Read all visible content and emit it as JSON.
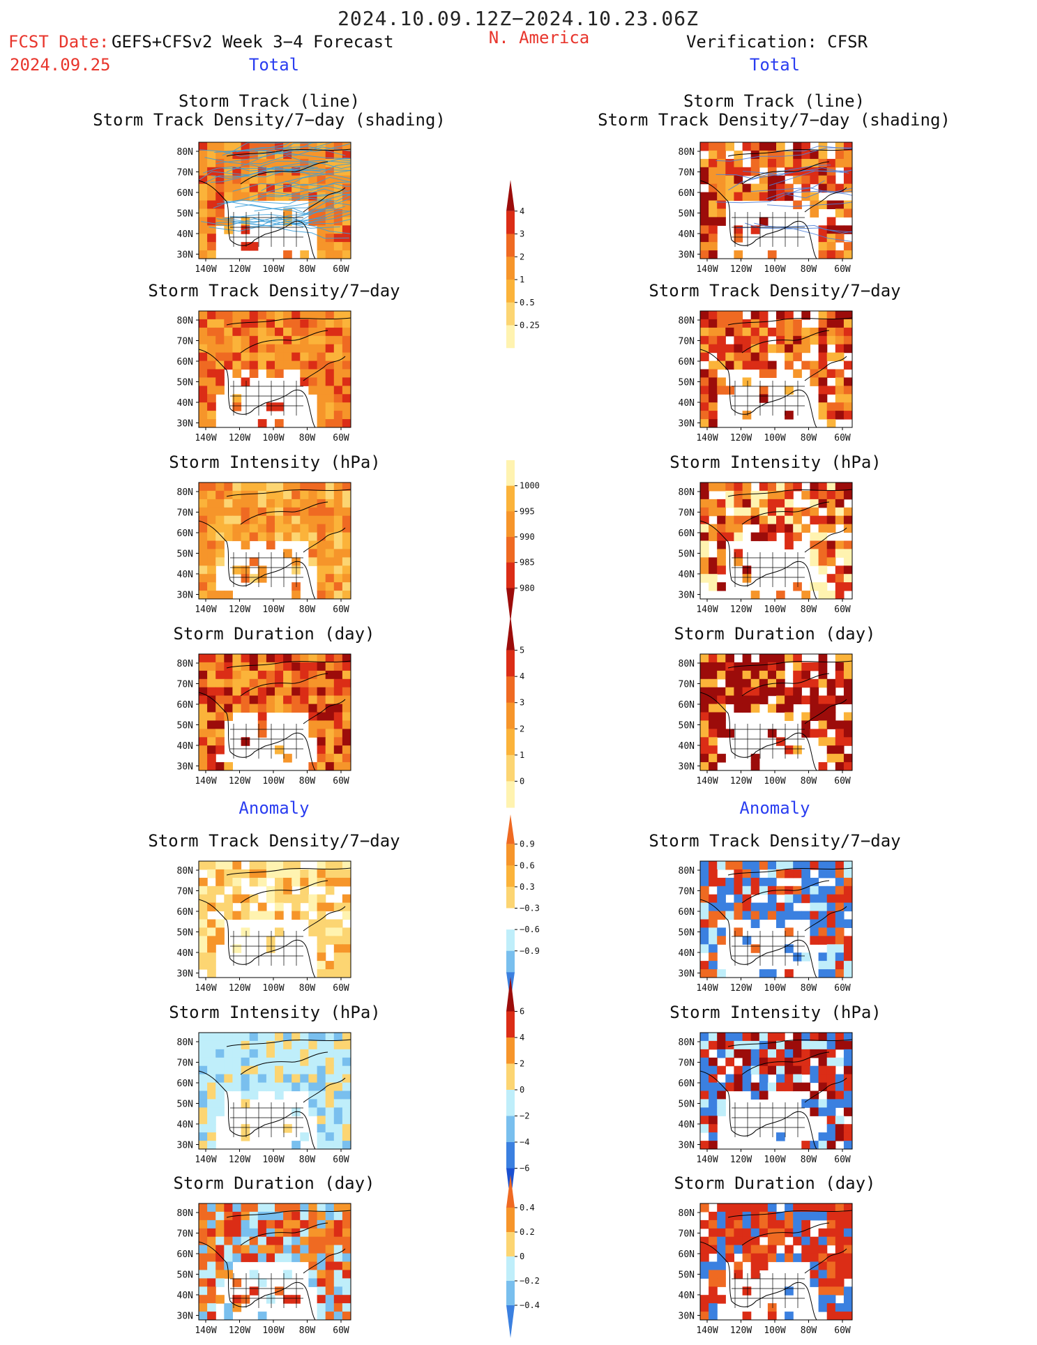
{
  "header": {
    "period": "2024.10.09.12Z−2024.10.23.06Z",
    "fcst_label": "FCST Date:",
    "model": "GEFS+CFSv2 Week 3−4 Forecast",
    "fcst_date": "2024.09.25",
    "region": "N. America",
    "verification": "Verification: CFSR"
  },
  "section_total": "Total",
  "section_anomaly": "Anomaly",
  "titles": {
    "track_line": "Storm Track (line)",
    "track_shading": "Storm Track Density/7−day (shading)",
    "density": "Storm Track Density/7−day",
    "intensity": "Storm Intensity (hPa)",
    "duration": "Storm Duration (day)"
  },
  "map_axes": {
    "lat_labels": [
      "80N",
      "70N",
      "60N",
      "50N",
      "40N",
      "30N"
    ],
    "lon_labels": [
      "140W",
      "120W",
      "100W",
      "80W",
      "60W"
    ]
  },
  "colorbars": {
    "density_total": [
      "4",
      "3",
      "2",
      "1",
      "0.5",
      "0.25"
    ],
    "intensity_total": [
      "1000",
      "995",
      "990",
      "985",
      "980"
    ],
    "duration_total": [
      "5",
      "4",
      "3",
      "2",
      "1",
      "0"
    ],
    "density_anom": [
      "0.9",
      "0.6",
      "0.3",
      "−0.3",
      "−0.6",
      "−0.9"
    ],
    "intensity_anom": [
      "6",
      "4",
      "2",
      "0",
      "−2",
      "−4",
      "−6"
    ],
    "duration_anom": [
      "0.4",
      "0.2",
      "0",
      "−0.2",
      "−0.4"
    ]
  },
  "colors": {
    "light_yellow": "#fff3b0",
    "yellow": "#fcd572",
    "orange_light": "#fbb33a",
    "orange": "#f6952a",
    "orange_red": "#ef6a22",
    "red": "#db2d16",
    "dark_red": "#9c0c0a",
    "track_blue": "#3b9ed9",
    "light_blue": "#bfeefa",
    "mid_blue": "#79bfee",
    "blue": "#3b80e0",
    "dark_blue": "#1a4fd0"
  }
}
